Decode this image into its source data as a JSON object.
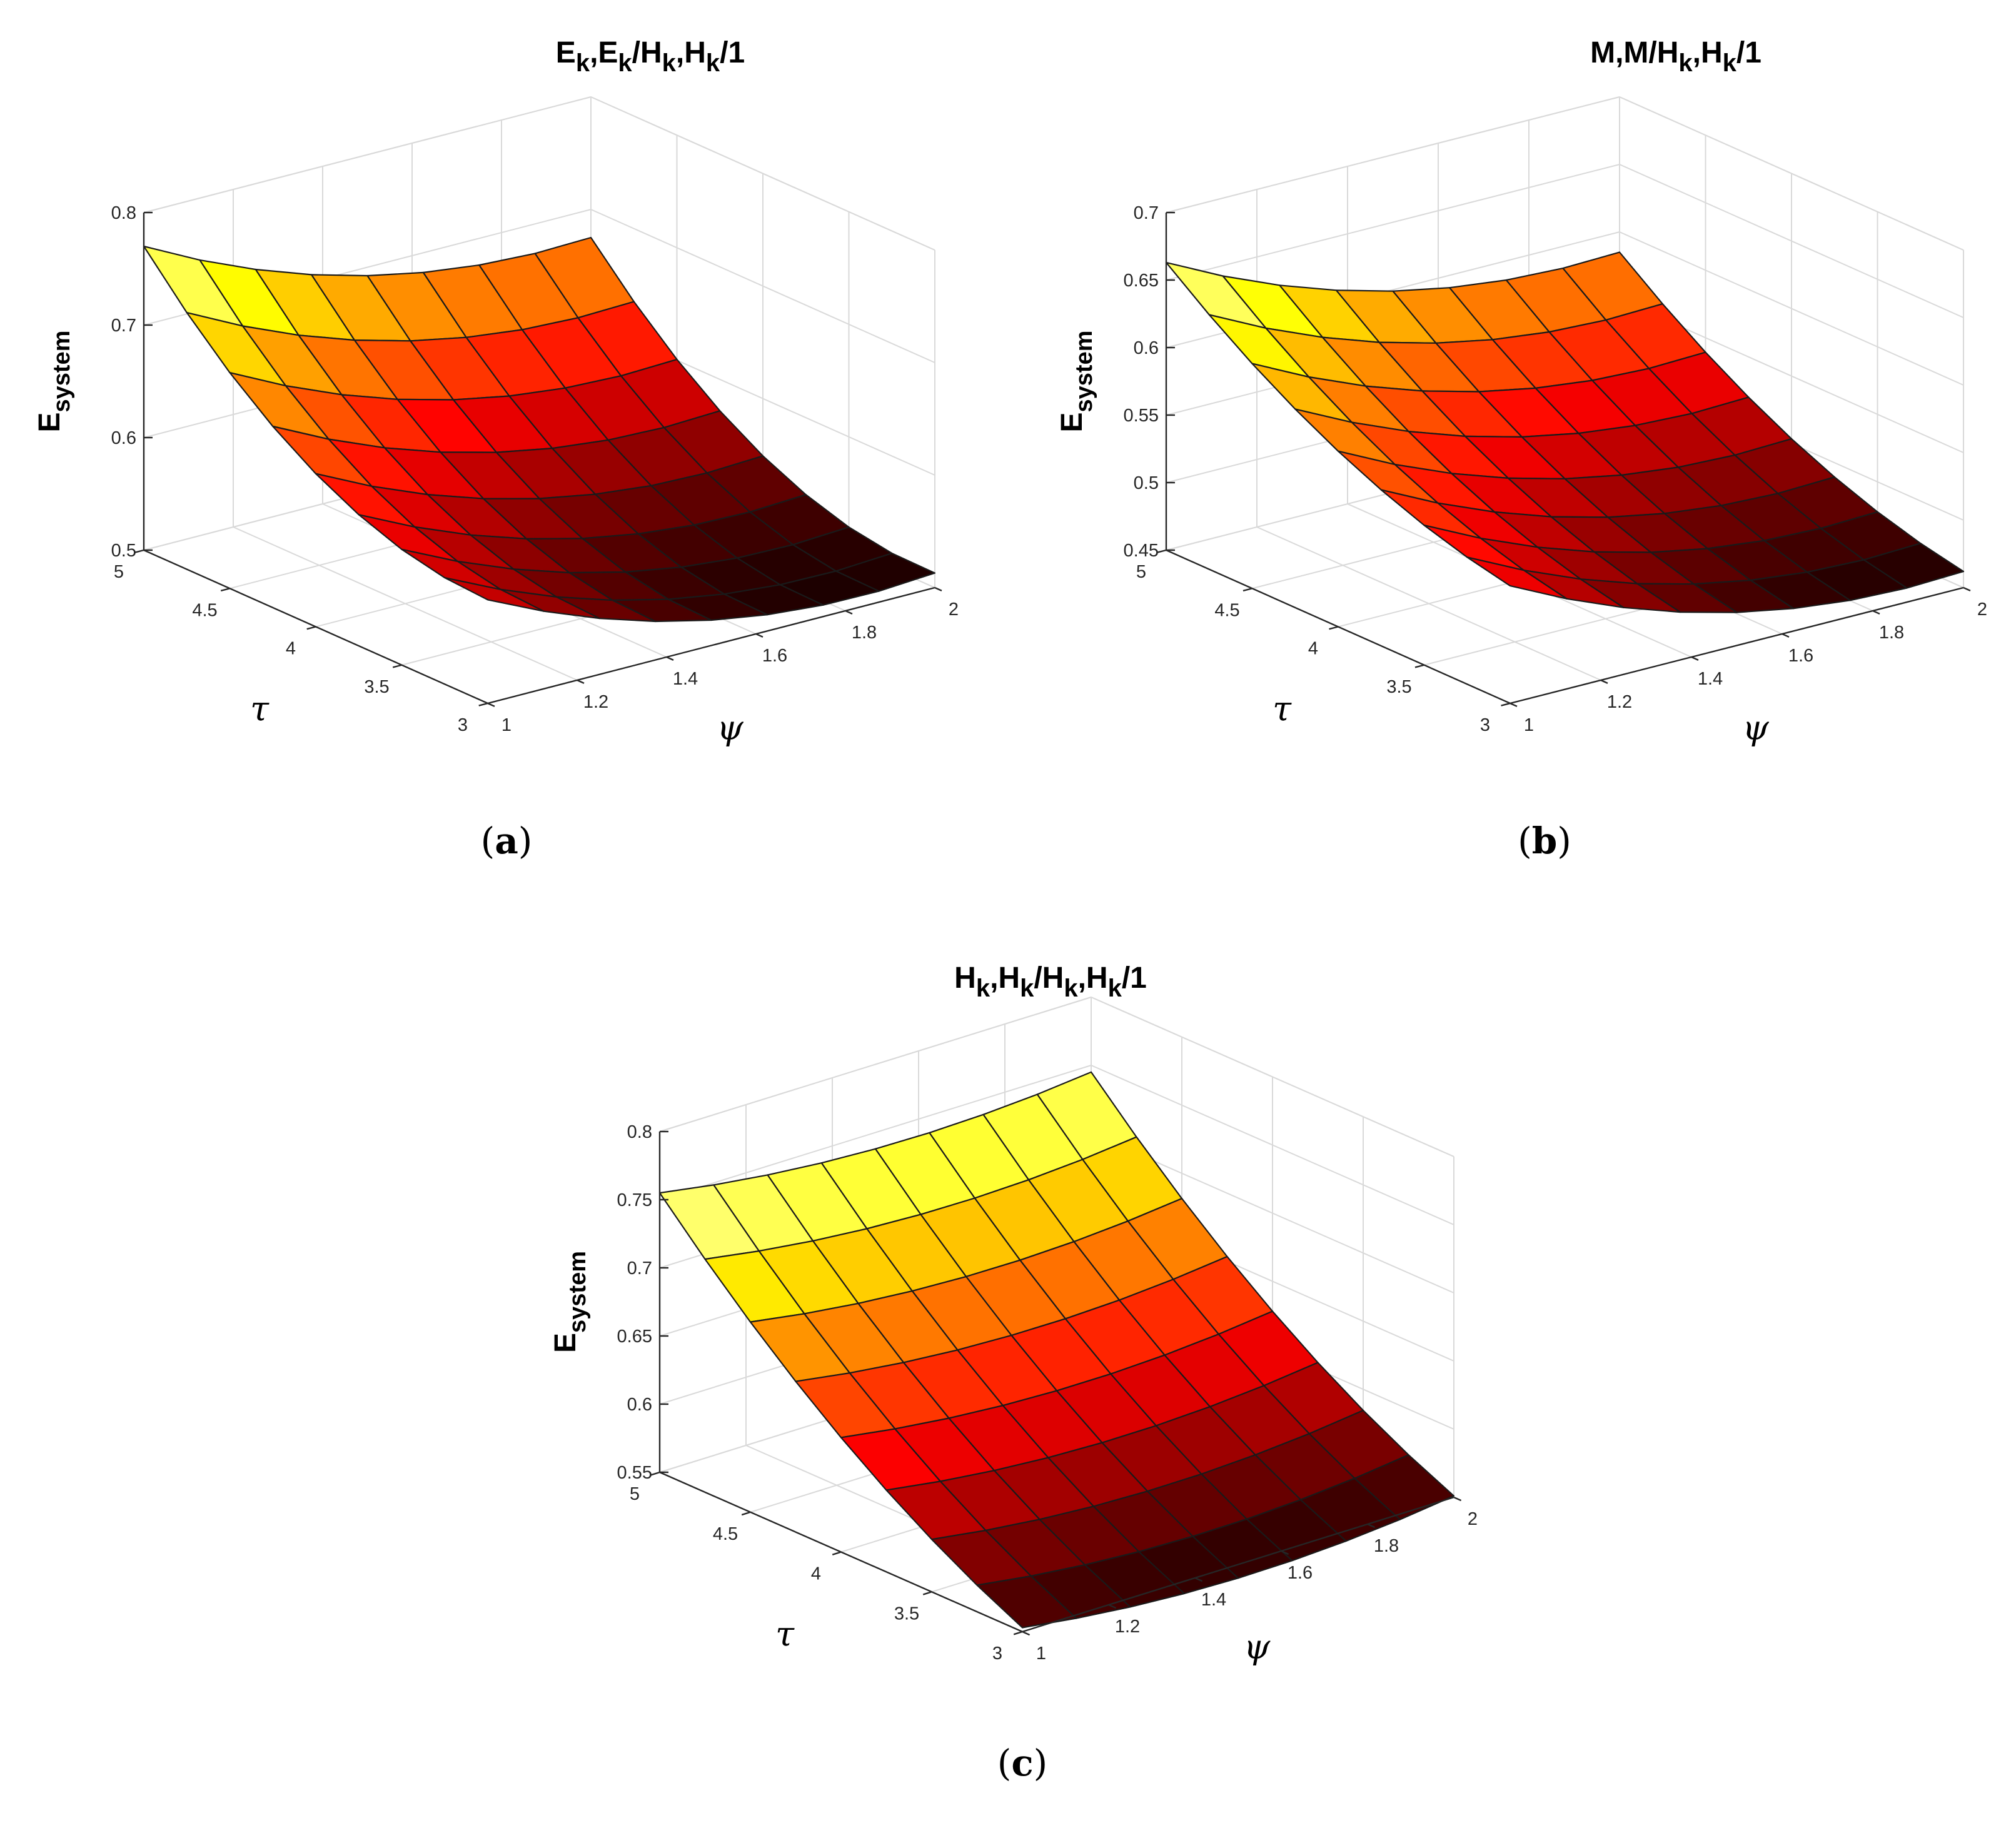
{
  "chart_data": [
    {
      "type": "surface",
      "title": "E_k,E_k/H_k,H_k/1",
      "title_parts": [
        [
          "E",
          ""
        ],
        [
          "k",
          "sub"
        ],
        [
          ",E",
          ""
        ],
        [
          "k",
          "sub"
        ],
        [
          "/H",
          ""
        ],
        [
          "k",
          "sub"
        ],
        [
          ",H",
          ""
        ],
        [
          "k",
          "sub"
        ],
        [
          "/1",
          ""
        ]
      ],
      "caption": "a",
      "xlabel": "ψ",
      "ylabel": "τ",
      "zlabel_main": "E",
      "zlabel_sub": "system",
      "x": [
        1,
        1.125,
        1.25,
        1.375,
        1.5,
        1.625,
        1.75,
        1.875,
        2
      ],
      "y": [
        3,
        3.25,
        3.5,
        3.75,
        4,
        4.25,
        4.5,
        4.75,
        5
      ],
      "xlim": [
        1,
        2
      ],
      "ylim": [
        3,
        5
      ],
      "zlim": [
        0.5,
        0.8
      ],
      "xticks": [
        "1",
        "1.2",
        "1.4",
        "1.6",
        "1.8",
        "2"
      ],
      "yticks": [
        "3",
        "3.5",
        "4",
        "4.5",
        "5"
      ],
      "zticks": [
        "0.5",
        "0.6",
        "0.7",
        "0.8"
      ],
      "corners": {
        "psi1_tau3": 0.592,
        "psi2_tau3": 0.513,
        "psi1_tau5": 0.77,
        "psi2_tau5": 0.675
      },
      "curvature": {
        "psi": 0.03,
        "tau": -0.045
      },
      "colormap": "hot"
    },
    {
      "type": "surface",
      "title": "M,M/H_k,H_k/1",
      "title_parts": [
        [
          "M,M/H",
          ""
        ],
        [
          "k",
          "sub"
        ],
        [
          ",H",
          ""
        ],
        [
          "k",
          "sub"
        ],
        [
          "/1",
          ""
        ]
      ],
      "caption": "b",
      "xlabel": "ψ",
      "ylabel": "τ",
      "zlabel_main": "E",
      "zlabel_sub": "system",
      "x": [
        1,
        1.125,
        1.25,
        1.375,
        1.5,
        1.625,
        1.75,
        1.875,
        2
      ],
      "y": [
        3,
        3.25,
        3.5,
        3.75,
        4,
        4.25,
        4.5,
        4.75,
        5
      ],
      "xlim": [
        1,
        2
      ],
      "ylim": [
        3,
        5
      ],
      "zlim": [
        0.45,
        0.7
      ],
      "xticks": [
        "1",
        "1.2",
        "1.4",
        "1.6",
        "1.8",
        "2"
      ],
      "yticks": [
        "3",
        "3.5",
        "4",
        "4.5",
        "5"
      ],
      "zticks": [
        "0.45",
        "0.5",
        "0.55",
        "0.6",
        "0.65",
        "0.7"
      ],
      "corners": {
        "psi1_tau3": 0.537,
        "psi2_tau3": 0.462,
        "psi1_tau5": 0.663,
        "psi2_tau5": 0.585
      },
      "curvature": {
        "psi": 0.025,
        "tau": -0.02
      },
      "colormap": "hot"
    },
    {
      "type": "surface",
      "title": "H_k,H_k/H_k,H_k/1",
      "title_parts": [
        [
          "H",
          ""
        ],
        [
          "k",
          "sub"
        ],
        [
          ",H",
          ""
        ],
        [
          "k",
          "sub"
        ],
        [
          "/H",
          ""
        ],
        [
          "k",
          "sub"
        ],
        [
          ",H",
          ""
        ],
        [
          "k",
          "sub"
        ],
        [
          "/1",
          ""
        ]
      ],
      "caption": "c",
      "xlabel": "ψ",
      "ylabel": "τ",
      "zlabel_main": "E",
      "zlabel_sub": "system",
      "x": [
        1,
        1.125,
        1.25,
        1.375,
        1.5,
        1.625,
        1.75,
        1.875,
        2
      ],
      "y": [
        3,
        3.25,
        3.5,
        3.75,
        4,
        4.25,
        4.5,
        4.75,
        5
      ],
      "xlim": [
        1,
        2
      ],
      "ylim": [
        3,
        5
      ],
      "zlim": [
        0.55,
        0.8
      ],
      "xticks": [
        "1",
        "1.2",
        "1.4",
        "1.6",
        "1.8",
        "2"
      ],
      "yticks": [
        "3",
        "3.5",
        "4",
        "4.5",
        "5"
      ],
      "zticks": [
        "0.55",
        "0.6",
        "0.65",
        "0.7",
        "0.75",
        "0.8"
      ],
      "corners": {
        "psi1_tau3": 0.553,
        "psi2_tau3": 0.551,
        "psi1_tau5": 0.755,
        "psi2_tau5": 0.745
      },
      "curvature": {
        "psi": 0.012,
        "tau": -0.02
      },
      "colormap": "hot"
    }
  ]
}
